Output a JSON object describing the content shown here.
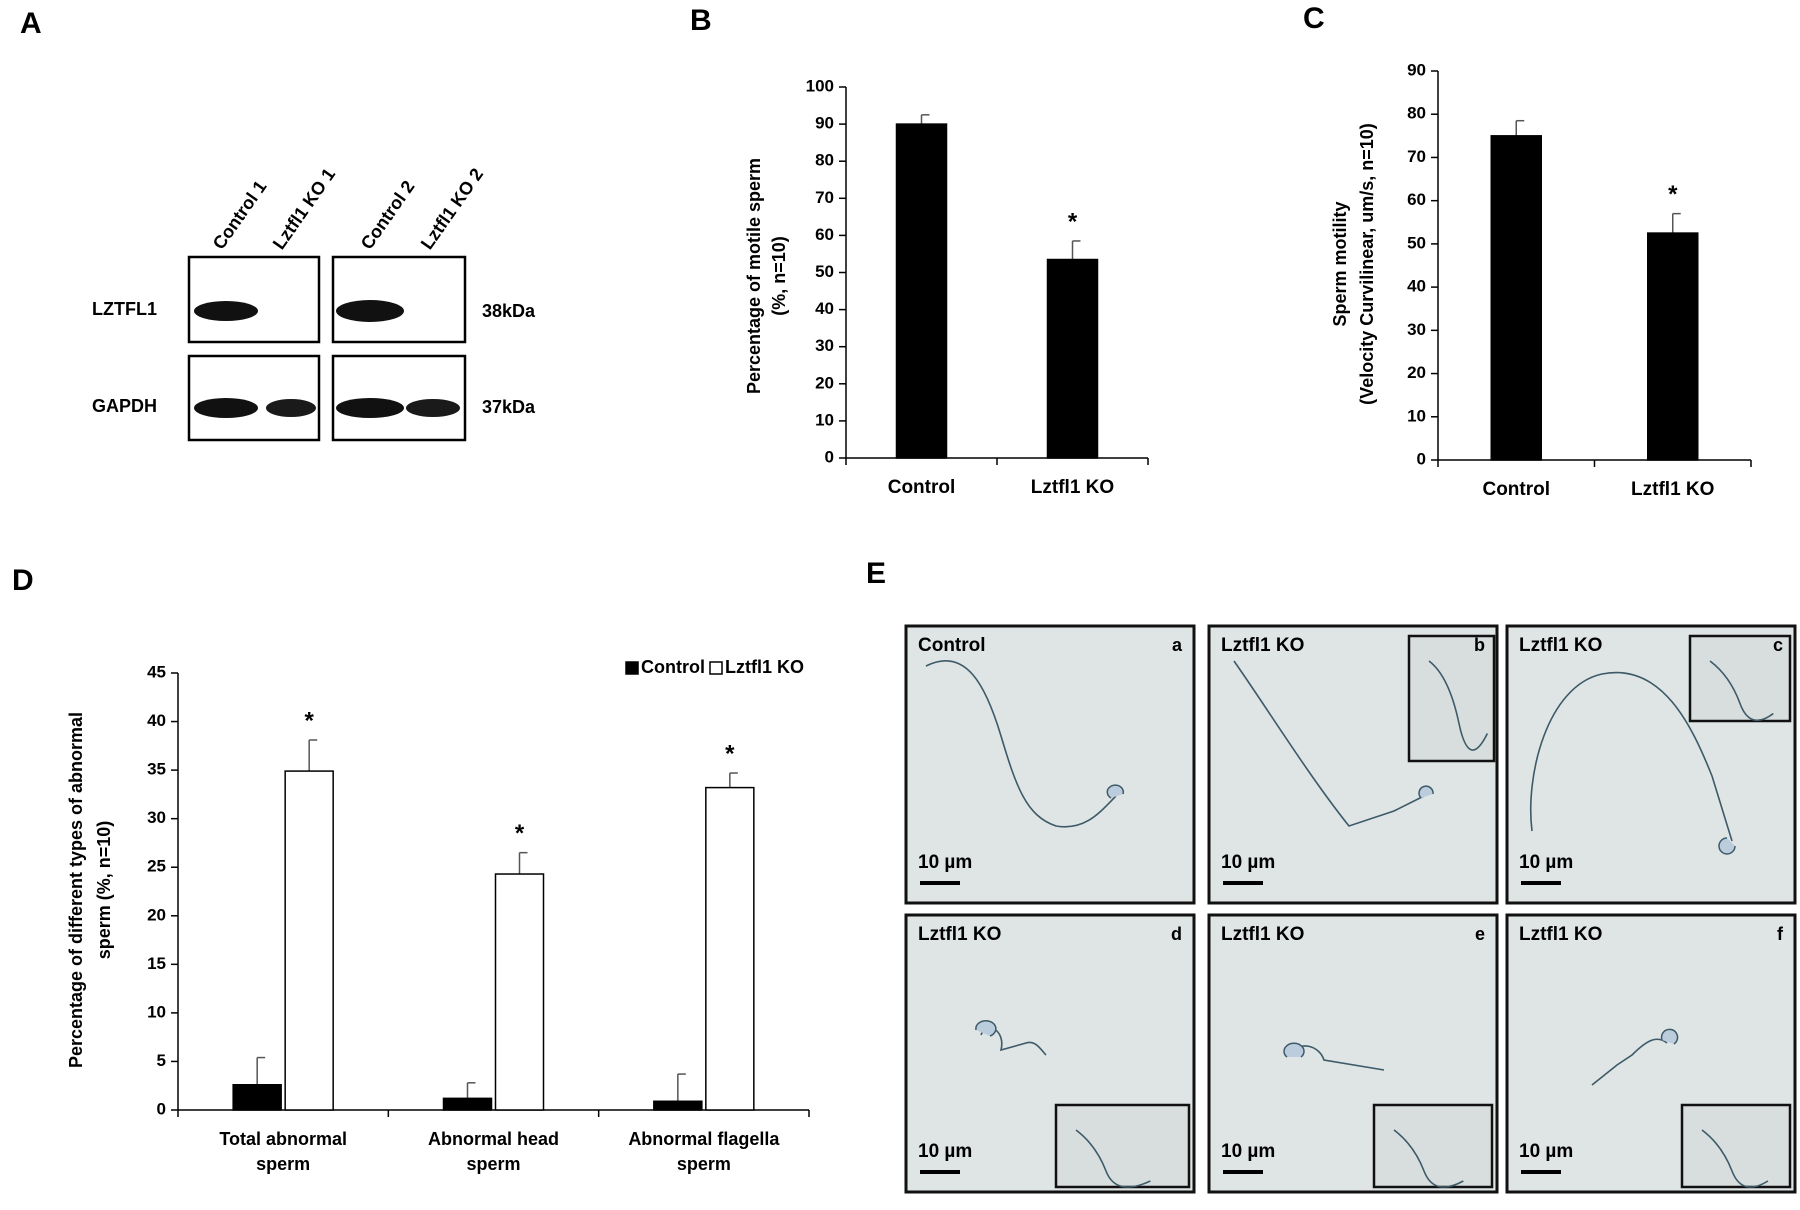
{
  "chart_data": [
    {
      "type": "bar",
      "panel": "B",
      "categories": [
        "Control",
        "Lztfl1 KO"
      ],
      "values": [
        90,
        53.5
      ],
      "errors": [
        2.5,
        5
      ],
      "annotations": [
        null,
        "*"
      ],
      "color": "#000000",
      "ylabel": [
        "Percentage of motile sperm",
        "(%, n=10)"
      ],
      "ylim": [
        0,
        100
      ],
      "yticks": [
        0,
        10,
        20,
        30,
        40,
        50,
        60,
        70,
        80,
        90,
        100
      ]
    },
    {
      "type": "bar",
      "panel": "C",
      "categories": [
        "Control",
        "Lztfl1 KO"
      ],
      "values": [
        75,
        52.5
      ],
      "errors": [
        3.5,
        4.5
      ],
      "annotations": [
        null,
        "*"
      ],
      "color": "#000000",
      "ylabel": [
        "Sperm motility",
        "(Velocity Curvilinear, um/s, n=10)"
      ],
      "ylim": [
        0,
        90
      ],
      "yticks": [
        0,
        10,
        20,
        30,
        40,
        50,
        60,
        70,
        80,
        90
      ]
    },
    {
      "type": "grouped_bar",
      "panel": "D",
      "categories": [
        [
          "Total abnormal",
          "sperm"
        ],
        [
          "Abnormal head",
          "sperm"
        ],
        [
          "Abnormal flagella",
          "sperm"
        ]
      ],
      "series": [
        {
          "name": "Control",
          "color": "#000000",
          "values": [
            2.6,
            1.2,
            0.9
          ],
          "errors": [
            2.8,
            1.6,
            2.8
          ]
        },
        {
          "name": "Lztfl1 KO",
          "color": "#ffffff",
          "values": [
            34.9,
            24.3,
            33.2
          ],
          "errors": [
            3.2,
            2.2,
            1.5
          ],
          "annotations": [
            "*",
            "*",
            "*"
          ]
        }
      ],
      "ylabel": [
        "Percentage of different types of abnormal",
        "sperm (%, n=10)"
      ],
      "ylim": [
        0,
        45
      ],
      "yticks": [
        0,
        5,
        10,
        15,
        20,
        25,
        30,
        35,
        40,
        45
      ],
      "legend": "upper right"
    }
  ],
  "blot": {
    "panel": "A",
    "lanes": [
      "Control 1",
      "Lztfl1 KO 1",
      "Control 2",
      "Lztfl1 KO 2"
    ],
    "rows": [
      {
        "label": "LZTFL1",
        "size": "38kDa"
      },
      {
        "label": "GAPDH",
        "size": "37kDa"
      }
    ]
  },
  "micrographs": {
    "panel": "E",
    "items": [
      {
        "label": "Control",
        "letter": "a",
        "scale": "10 µm"
      },
      {
        "label": "Lztfl1 KO",
        "letter": "b",
        "scale": "10 µm"
      },
      {
        "label": "Lztfl1 KO",
        "letter": "c",
        "scale": "10 µm"
      },
      {
        "label": "Lztfl1 KO",
        "letter": "d",
        "scale": "10 µm"
      },
      {
        "label": "Lztfl1 KO",
        "letter": "e",
        "scale": "10 µm"
      },
      {
        "label": "Lztfl1 KO",
        "letter": "f",
        "scale": "10 µm"
      }
    ]
  }
}
